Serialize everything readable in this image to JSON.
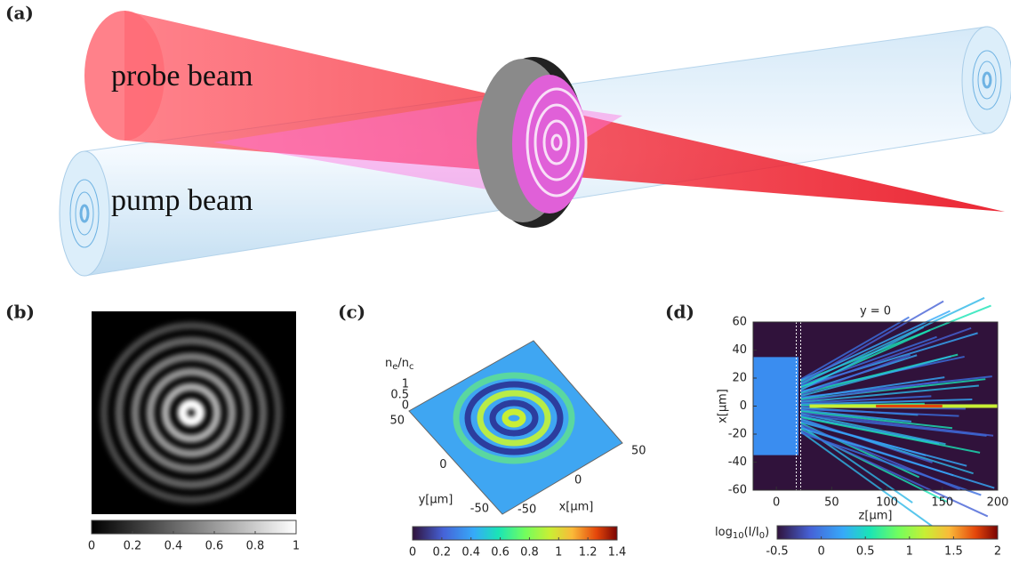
{
  "panels": {
    "a": {
      "label": "(a)",
      "probe": "probe beam",
      "pump": "pump beam"
    },
    "b": {
      "label": "(b)",
      "colorbar": {
        "lim": [
          0,
          1
        ],
        "ticks": [
          0,
          0.2,
          0.4,
          0.6,
          0.8,
          1
        ]
      }
    },
    "c": {
      "label": "(c)",
      "zlabel": [
        "n",
        "e",
        "/n",
        "c"
      ],
      "zticks": [
        0,
        0.5,
        1
      ],
      "xlabel": "x[μm]",
      "xticks": [
        -50,
        0,
        50
      ],
      "ylabel": "y[μm]",
      "yticks": [
        -50,
        0,
        50
      ],
      "colorbar": {
        "lim": [
          0,
          1.4
        ],
        "ticks": [
          0,
          0.2,
          0.4,
          0.6,
          0.8,
          1,
          1.2,
          1.4
        ]
      }
    },
    "d": {
      "label": "(d)",
      "title": "y = 0",
      "xlabel": "z[μm]",
      "ylabel": "x[μm]",
      "xlim": [
        -21,
        200
      ],
      "xticks": [
        0,
        50,
        100,
        150,
        200
      ],
      "ylim": [
        -60,
        60
      ],
      "yticks": [
        -60,
        -40,
        -20,
        0,
        20,
        40,
        60
      ],
      "colorbar": {
        "label": [
          "log",
          "10",
          "(I/I",
          "0",
          ")"
        ],
        "lim": [
          -0.5,
          2
        ],
        "ticks": [
          -0.5,
          0,
          0.5,
          1,
          1.5,
          2
        ]
      }
    }
  }
}
